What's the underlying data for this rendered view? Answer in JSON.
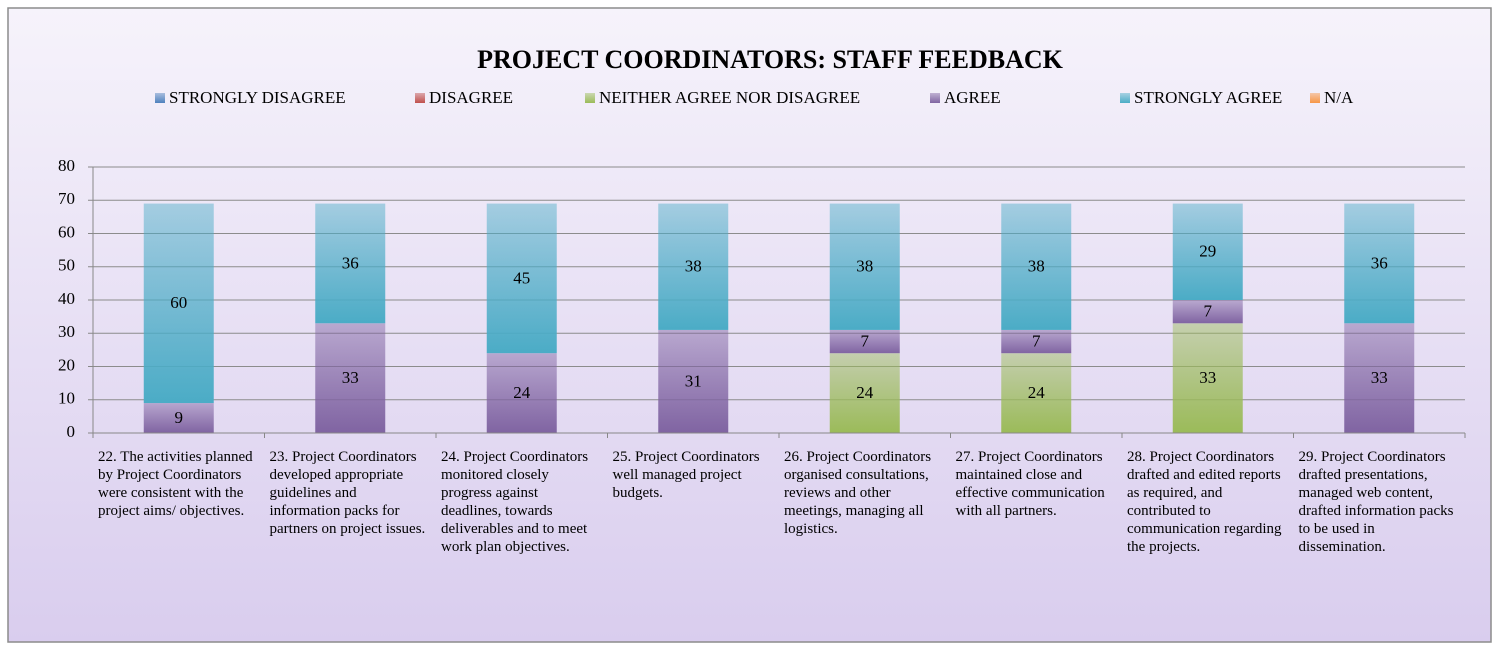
{
  "chart_data": {
    "type": "stacked_bar",
    "title": "PROJECT COORDINATORS: STAFF FEEDBACK",
    "categories": [
      "22. The activities planned by Project Coordinators were consistent with the project aims/ objectives.",
      "23. Project Coordinators developed appropriate guidelines and information packs for partners on project issues.",
      "24. Project Coordinators monitored closely progress against deadlines, towards deliverables and to meet work plan objectives.",
      "25. Project Coordinators well managed project budgets.",
      "26. Project Coordinators organised consultations, reviews and other meetings, managing all logistics.",
      "27. Project Coordinators maintained close and effective communication with all partners.",
      "28. Project Coordinators drafted and edited reports as required, and contributed to communication regarding the projects.",
      "29. Project Coordinators drafted presentations, managed web content, drafted information packs to be used in dissemination."
    ],
    "series": [
      {
        "name": "STRONGLY DISAGREE",
        "color": "#4f81bd",
        "values": [
          null,
          null,
          null,
          null,
          null,
          null,
          null,
          null
        ]
      },
      {
        "name": "DISAGREE",
        "color": "#c0504d",
        "values": [
          null,
          null,
          null,
          null,
          null,
          null,
          null,
          null
        ]
      },
      {
        "name": "NEITHER AGREE NOR DISAGREE",
        "color": "#9bbb59",
        "values": [
          null,
          null,
          null,
          null,
          24,
          24,
          33,
          null
        ]
      },
      {
        "name": "AGREE",
        "color": "#8064a2",
        "values": [
          9,
          33,
          24,
          31,
          7,
          7,
          7,
          33
        ]
      },
      {
        "name": "STRONGLY AGREE",
        "color": "#4bacc6",
        "values": [
          60,
          36,
          45,
          38,
          38,
          38,
          29,
          36
        ]
      },
      {
        "name": "N/A",
        "color": "#f79646",
        "values": [
          null,
          null,
          null,
          null,
          null,
          null,
          null,
          null
        ]
      }
    ],
    "ylim": [
      0,
      80
    ],
    "yticks": [
      0,
      10,
      20,
      30,
      40,
      50,
      60,
      70,
      80
    ],
    "grid": true,
    "legend": "top"
  }
}
